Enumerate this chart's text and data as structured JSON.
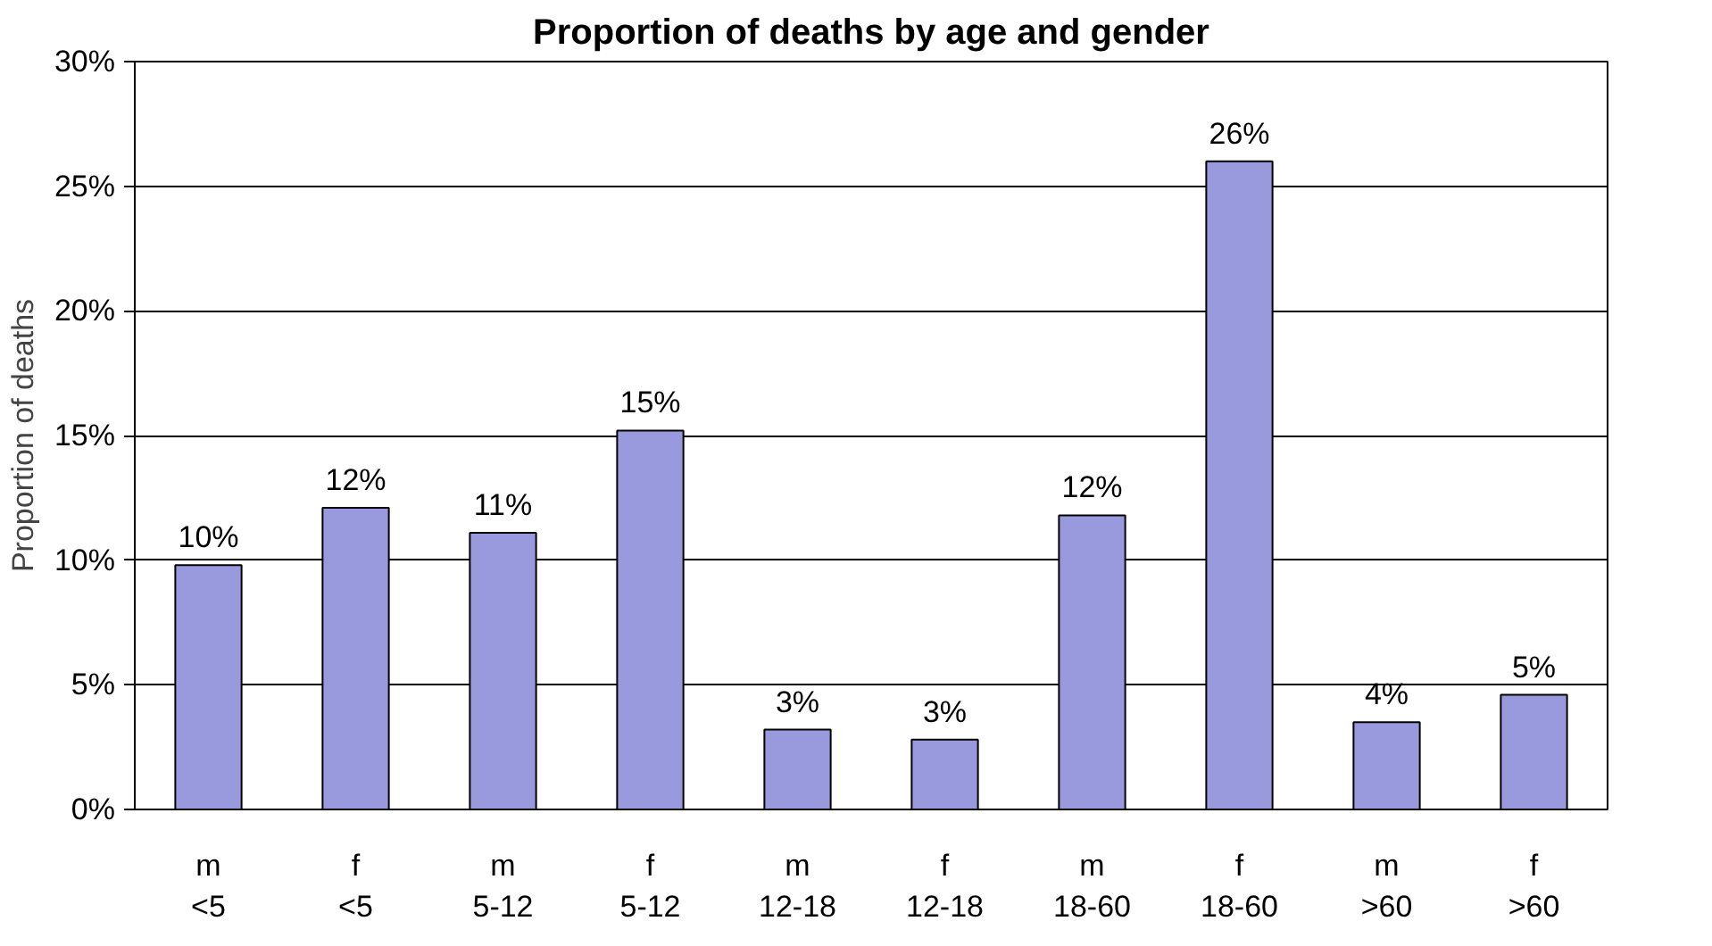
{
  "chart_data": {
    "type": "bar",
    "title": "Proportion of deaths by age and gender",
    "ylabel": "Proportion of deaths",
    "categories": [
      "m\n<5",
      "f\n<5",
      "m\n5-12",
      "f\n5-12",
      "m\n12-18",
      "f\n12-18",
      "m\n18-60",
      "f\n18-60",
      "m\n>60",
      "f\n>60"
    ],
    "values": [
      9.8,
      12.1,
      11.1,
      15.2,
      3.2,
      2.8,
      11.8,
      26.0,
      3.5,
      4.6
    ],
    "value_labels": [
      "10%",
      "12%",
      "11%",
      "15%",
      "3%",
      "3%",
      "12%",
      "26%",
      "4%",
      "5%"
    ],
    "color": "#9999dd",
    "ylim": [
      0,
      30
    ],
    "yticks": [
      {
        "value": 0,
        "label": "0%"
      },
      {
        "value": 5,
        "label": "5%"
      },
      {
        "value": 10,
        "label": "10%"
      },
      {
        "value": 15,
        "label": "15%"
      },
      {
        "value": 20,
        "label": "20%"
      },
      {
        "value": 25,
        "label": "25%"
      },
      {
        "value": 30,
        "label": "30%"
      }
    ],
    "grid": "y"
  }
}
